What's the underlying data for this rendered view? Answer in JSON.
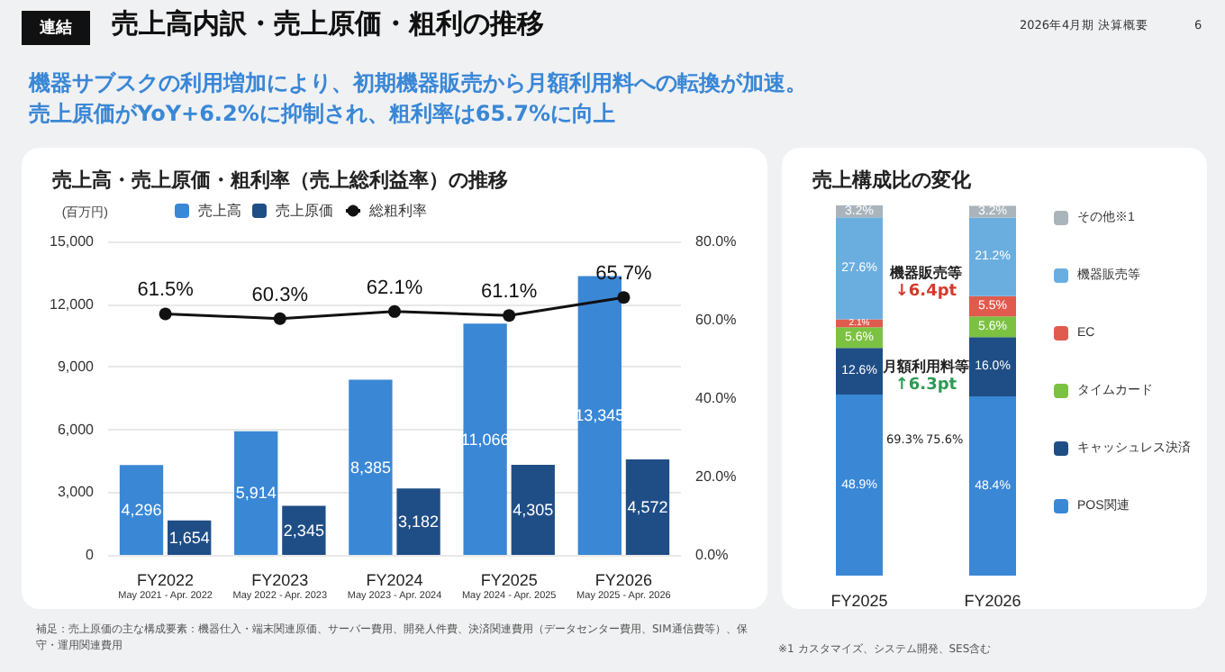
{
  "chart_data": [
    {
      "type": "bar",
      "title": "売上高・売上原価・粗利率（売上総利益率）の推移",
      "ylabel": "(百万円)",
      "categories": [
        "FY2022\nMay 2021 - Apr. 2022",
        "FY2023\nMay 2022 - Apr. 2023",
        "FY2024\nMay 2023 - Apr. 2024",
        "FY2025\nMay 2024 - Apr. 2025",
        "FY2026\nMay 2025 - Apr. 2026"
      ],
      "series": [
        {
          "name": "売上高",
          "color": "#3a87d6",
          "values": [
            4296,
            5914,
            8385,
            11066,
            13345
          ],
          "value_labels": [
            "4,296",
            "5,914",
            "8,385",
            "11,066",
            "13,345"
          ]
        },
        {
          "name": "売上原価",
          "color": "#1f4e86",
          "values": [
            1654,
            2345,
            3182,
            4305,
            4572
          ],
          "value_labels": [
            "1,654",
            "2,345",
            "3,182",
            "4,305",
            "4,572"
          ]
        },
        {
          "name": "総粗利率",
          "type": "line",
          "axis": "y2",
          "color": "#111111",
          "marker": "circle",
          "values": [
            61.5,
            60.3,
            62.1,
            61.1,
            65.7
          ],
          "value_labels": [
            "61.5%",
            "60.3%",
            "62.1%",
            "61.1%",
            "65.7%"
          ]
        }
      ],
      "ylim": [
        0,
        15000
      ],
      "yticks": [
        0,
        {
          "value": 3000,
          "label": "3,000"
        },
        {
          "value": 6000,
          "label": "6,000"
        },
        {
          "value": 9000,
          "label": "9,000"
        },
        {
          "value": 12000,
          "label": "12,000"
        },
        {
          "value": 15000,
          "label": "15,000"
        }
      ],
      "y2lim": [
        0,
        80
      ],
      "y2ticks": [
        {
          "value": 0,
          "label": "0.0%"
        },
        {
          "value": 20,
          "label": "20.0%"
        },
        {
          "value": 40,
          "label": "40.0%"
        },
        {
          "value": 60,
          "label": "60.0%"
        },
        {
          "value": 80,
          "label": "80.0%"
        }
      ],
      "grid": "y",
      "legend": "top left",
      "annotations": [
        "連結",
        "売上高内訳・売上原価・粗利の推移",
        "2026年4月期 決算概要",
        "6",
        "機器サブスクの利用増加により、初期機器販売から月額利用料への転換が加速。",
        "売上原価がYoY+6.2%に抑制され、粗利率は65.7%に向上",
        "補足：売上原価の主な構成要素：機器仕入・端末関連原価、サーバー費用、開発人件費、決済関連費用（データセンター費用、SIM通信費等）、保守・運用関連費用"
      ]
    },
    {
      "type": "bar",
      "title": "売上構成比の変化",
      "stacked": true,
      "categories": [
        "FY2025",
        "FY2026"
      ],
      "series": [
        {
          "name": "POS関連",
          "color": "#3a87d6",
          "values": [
            48.9,
            48.4
          ],
          "value_labels": [
            "48.9%",
            "48.4%"
          ]
        },
        {
          "name": "キャッシュレス決済",
          "color": "#1f4e86",
          "values": [
            12.6,
            16.0
          ],
          "value_labels": [
            "12.6%",
            "16.0%"
          ]
        },
        {
          "name": "タイムカード",
          "color": "#7cc242",
          "values": [
            5.6,
            5.6
          ],
          "value_labels": [
            "5.6%",
            "5.6%"
          ]
        },
        {
          "name": "EC",
          "color": "#e05a4e",
          "values": [
            2.1,
            5.5
          ],
          "value_labels": [
            "2.1%",
            "5.5%"
          ]
        },
        {
          "name": "機器販売等",
          "color": "#6aaee0",
          "values": [
            27.6,
            21.2
          ],
          "value_labels": [
            "27.6%",
            "21.2%"
          ]
        },
        {
          "name": "その他※1",
          "color": "#a9b4bb",
          "values": [
            3.2,
            3.2
          ],
          "value_labels": [
            "3.2%",
            "3.2%"
          ]
        }
      ],
      "ylim": [
        0,
        100
      ],
      "tick_labels": "x",
      "legend": "right",
      "annotations": [
        "機器販売等",
        "↓6.4pt",
        "月額利用料等",
        "↑6.3pt",
        "69.3%",
        "75.6%",
        "※1 カスタマイズ、システム開発、SES含む"
      ]
    }
  ]
}
